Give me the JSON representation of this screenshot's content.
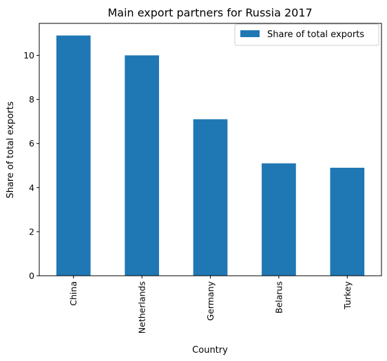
{
  "chart_data": {
    "type": "bar",
    "title": "Main export partners for Russia 2017",
    "xlabel": "Country",
    "ylabel": "Share of total exports",
    "categories": [
      "China",
      "Netherlands",
      "Germany",
      "Belarus",
      "Turkey"
    ],
    "series": [
      {
        "name": "Share of total exports",
        "values": [
          10.9,
          10.0,
          7.1,
          5.1,
          4.9
        ],
        "color": "#1f77b4"
      }
    ],
    "ylim": [
      0,
      11.45
    ],
    "yticks": [
      0,
      2,
      4,
      6,
      8,
      10
    ],
    "grid": false,
    "legend": "top-right"
  }
}
